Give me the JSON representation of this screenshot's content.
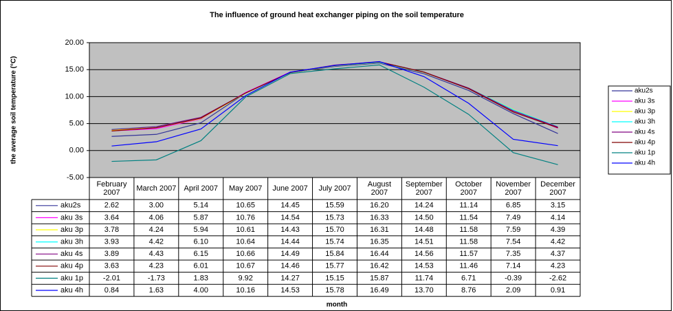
{
  "chart_data": {
    "type": "line",
    "title": "The influence of ground heat exchanger piping on the soil temperature",
    "x_label": "month",
    "y_label": "the average soil temperature (°C)",
    "categories": [
      "February 2007",
      "March 2007",
      "April 2007",
      "May 2007",
      "June 2007",
      "July 2007",
      "August 2007",
      "September 2007",
      "October 2007",
      "November 2007",
      "December 2007"
    ],
    "ylim": [
      -5,
      20
    ],
    "yticks": [
      {
        "value": -5,
        "label": "-5.00"
      },
      {
        "value": 0,
        "label": "0.00"
      },
      {
        "value": 5,
        "label": "5.00"
      },
      {
        "value": 10,
        "label": "10.00"
      },
      {
        "value": 15,
        "label": "15.00"
      },
      {
        "value": 20,
        "label": "20.00"
      }
    ],
    "grid": true,
    "legend": "right",
    "series": [
      {
        "name": "aku2s",
        "color": "#333399",
        "values": [
          2.62,
          3.0,
          5.14,
          10.65,
          14.45,
          15.59,
          16.2,
          14.24,
          11.14,
          6.85,
          3.15
        ],
        "value_labels": [
          "2.62",
          "3.00",
          "5.14",
          "10.65",
          "14.45",
          "15.59",
          "16.20",
          "14.24",
          "11.14",
          "6.85",
          "3.15"
        ]
      },
      {
        "name": "aku 3s",
        "color": "#ff00ff",
        "values": [
          3.64,
          4.06,
          5.87,
          10.76,
          14.54,
          15.73,
          16.33,
          14.5,
          11.54,
          7.49,
          4.14
        ],
        "value_labels": [
          "3.64",
          "4.06",
          "5.87",
          "10.76",
          "14.54",
          "15.73",
          "16.33",
          "14.50",
          "11.54",
          "7.49",
          "4.14"
        ]
      },
      {
        "name": "aku 3p",
        "color": "#ffff00",
        "values": [
          3.78,
          4.24,
          5.94,
          10.61,
          14.43,
          15.7,
          16.31,
          14.48,
          11.58,
          7.59,
          4.39
        ],
        "value_labels": [
          "3.78",
          "4.24",
          "5.94",
          "10.61",
          "14.43",
          "15.70",
          "16.31",
          "14.48",
          "11.58",
          "7.59",
          "4.39"
        ]
      },
      {
        "name": "aku 3h",
        "color": "#00ffff",
        "values": [
          3.93,
          4.42,
          6.1,
          10.64,
          14.44,
          15.74,
          16.35,
          14.51,
          11.58,
          7.54,
          4.42
        ],
        "value_labels": [
          "3.93",
          "4.42",
          "6.10",
          "10.64",
          "14.44",
          "15.74",
          "16.35",
          "14.51",
          "11.58",
          "7.54",
          "4.42"
        ]
      },
      {
        "name": "aku 4s",
        "color": "#800080",
        "values": [
          3.89,
          4.43,
          6.15,
          10.66,
          14.49,
          15.84,
          16.44,
          14.56,
          11.57,
          7.35,
          4.37
        ],
        "value_labels": [
          "3.89",
          "4.43",
          "6.15",
          "10.66",
          "14.49",
          "15.84",
          "16.44",
          "14.56",
          "11.57",
          "7.35",
          "4.37"
        ]
      },
      {
        "name": "aku 4p",
        "color": "#800000",
        "values": [
          3.63,
          4.23,
          6.01,
          10.67,
          14.46,
          15.77,
          16.42,
          14.53,
          11.46,
          7.14,
          4.23
        ],
        "value_labels": [
          "3.63",
          "4.23",
          "6.01",
          "10.67",
          "14.46",
          "15.77",
          "16.42",
          "14.53",
          "11.46",
          "7.14",
          "4.23"
        ]
      },
      {
        "name": "aku 1p",
        "color": "#008080",
        "values": [
          -2.01,
          -1.73,
          1.83,
          9.92,
          14.27,
          15.15,
          15.87,
          11.74,
          6.71,
          -0.39,
          -2.62
        ],
        "value_labels": [
          "-2.01",
          "-1.73",
          "1.83",
          "9.92",
          "14.27",
          "15.15",
          "15.87",
          "11.74",
          "6.71",
          "-0.39",
          "-2.62"
        ]
      },
      {
        "name": "aku 4h",
        "color": "#0000ff",
        "values": [
          0.84,
          1.63,
          4.0,
          10.16,
          14.53,
          15.78,
          16.49,
          13.7,
          8.76,
          2.09,
          0.91
        ],
        "value_labels": [
          "0.84",
          "1.63",
          "4.00",
          "10.16",
          "14.53",
          "15.78",
          "16.49",
          "13.70",
          "8.76",
          "2.09",
          "0.91"
        ]
      }
    ]
  }
}
